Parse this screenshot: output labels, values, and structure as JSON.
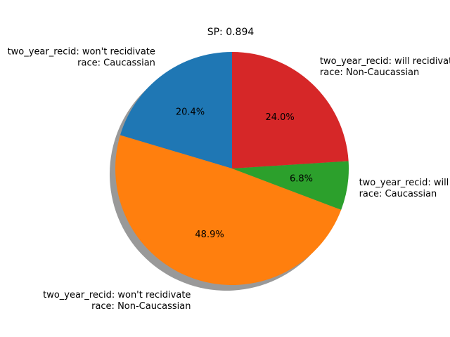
{
  "chart_data": {
    "type": "pie",
    "title": "SP: 0.894",
    "shadow": true,
    "start_angle_deg": 90,
    "direction": "counterclockwise",
    "slices": [
      {
        "label_lines": [
          "two_year_recid: won't recidivate",
          "race: Caucassian"
        ],
        "value": 20.4,
        "pct_label": "20.4%",
        "color": "#1f77b4"
      },
      {
        "label_lines": [
          "two_year_recid: won't recidivate",
          "race: Non-Caucassian"
        ],
        "value": 48.9,
        "pct_label": "48.9%",
        "color": "#ff7f0e"
      },
      {
        "label_lines": [
          "two_year_recid: will recidivate",
          "race: Caucassian"
        ],
        "value": 6.8,
        "pct_label": "6.8%",
        "color": "#2ca02c"
      },
      {
        "label_lines": [
          "two_year_recid: will recidivate",
          "race: Non-Caucassian"
        ],
        "value": 24.0,
        "pct_label": "24.0%",
        "color": "#d62728"
      }
    ]
  }
}
